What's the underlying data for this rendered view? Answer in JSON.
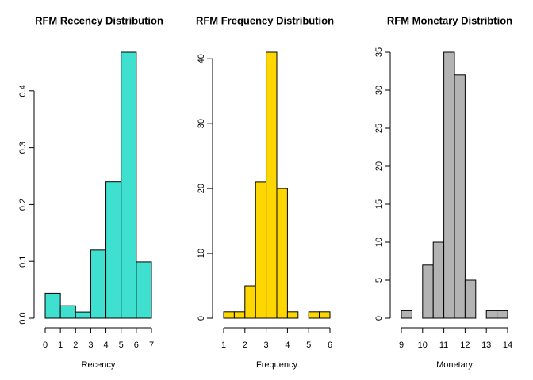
{
  "chart_data": [
    {
      "type": "histogram",
      "title": "RFM Recency Distribution",
      "xlabel": "Recency",
      "bins": [
        0,
        1,
        2,
        3,
        4,
        5,
        6,
        7
      ],
      "values": [
        0.044,
        0.022,
        0.011,
        0.12,
        0.24,
        0.468,
        0.099
      ],
      "color": "#40e0d0",
      "xlim": [
        0,
        7
      ],
      "xticks": [
        0,
        1,
        2,
        3,
        4,
        5,
        6,
        7
      ],
      "ylim": [
        0,
        0.468
      ],
      "yticks": [
        {
          "value": 0,
          "label": "0.0"
        },
        0.1,
        0.2,
        0.3,
        0.4
      ]
    },
    {
      "type": "histogram",
      "title": "RFM Frequency Distribution",
      "xlabel": "Frequency",
      "bins": [
        1,
        1.5,
        2,
        2.5,
        3,
        3.5,
        4,
        4.5,
        5,
        5.5,
        6
      ],
      "values": [
        1,
        1,
        5,
        21,
        41,
        20,
        1,
        0,
        1,
        1
      ],
      "color": "#ffd700",
      "xlim": [
        1,
        6
      ],
      "xticks": [
        1,
        2,
        3,
        4,
        5,
        6
      ],
      "ylim": [
        0,
        41
      ],
      "yticks": [
        0,
        10,
        20,
        30,
        40
      ]
    },
    {
      "type": "histogram",
      "title": "RFM Monetary Distribtion",
      "xlabel": "Monetary",
      "bins": [
        9,
        9.5,
        10,
        10.5,
        11,
        11.5,
        12,
        12.5,
        13,
        13.5,
        14
      ],
      "values": [
        1,
        0,
        7,
        10,
        35,
        32,
        5,
        0,
        1,
        1
      ],
      "color": "#b3b3b3",
      "xlim": [
        9,
        14
      ],
      "xticks": [
        9,
        10,
        11,
        12,
        13,
        14
      ],
      "ylim": [
        0,
        35
      ],
      "yticks": [
        0,
        5,
        10,
        15,
        20,
        25,
        30,
        35
      ]
    }
  ]
}
